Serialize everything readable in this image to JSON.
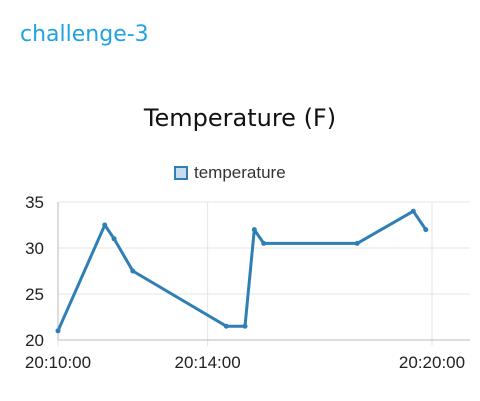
{
  "header": {
    "title": "challenge-3"
  },
  "colors": {
    "header_accent": "#1fa4e0",
    "series_line": "#2f7fb7",
    "legend_fill": "#c8dcec",
    "grid": "#e5e5e5"
  },
  "chart_data": {
    "type": "line",
    "title": "Temperature (F)",
    "xlabel": "",
    "ylabel": "",
    "legend_position": "top-center",
    "grid": true,
    "ylim": [
      20,
      35
    ],
    "y_ticks": [
      "20",
      "25",
      "30",
      "35"
    ],
    "x_ticks": [
      "20:10:00",
      "20:14:00",
      "20:20:00"
    ],
    "x_tick_values": [
      "20:10:00",
      "20:14:00",
      "20:20:00"
    ],
    "xlim": [
      "20:10:00",
      "20:20:00"
    ],
    "series": [
      {
        "name": "temperature",
        "points": [
          {
            "x": "20:10:00",
            "y": 21.0
          },
          {
            "x": "20:11:15",
            "y": 32.5
          },
          {
            "x": "20:11:30",
            "y": 31.0
          },
          {
            "x": "20:12:00",
            "y": 27.5
          },
          {
            "x": "20:14:30",
            "y": 21.5
          },
          {
            "x": "20:15:00",
            "y": 21.5
          },
          {
            "x": "20:15:15",
            "y": 32.0
          },
          {
            "x": "20:15:30",
            "y": 30.5
          },
          {
            "x": "20:18:00",
            "y": 30.5
          },
          {
            "x": "20:19:30",
            "y": 34.0
          },
          {
            "x": "20:19:50",
            "y": 32.0
          }
        ]
      }
    ]
  }
}
